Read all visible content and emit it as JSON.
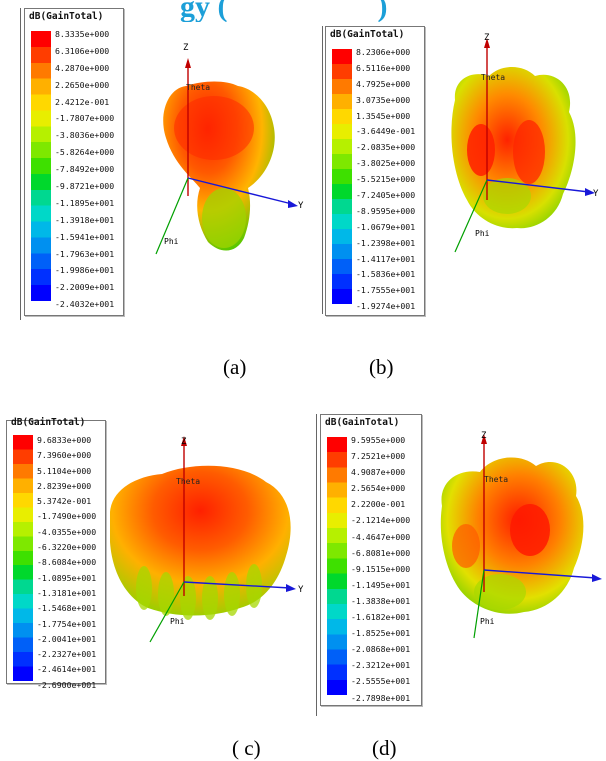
{
  "page": {
    "top_fragment": "gy (",
    "top_fragment_tail": ")"
  },
  "colors": {
    "scale": [
      "#ff0000",
      "#ff3d00",
      "#ff7a00",
      "#ffb000",
      "#ffd800",
      "#e8ee00",
      "#b6f000",
      "#7ee800",
      "#3ee000",
      "#00d82c",
      "#00d890",
      "#00d8c8",
      "#00b8e8",
      "#0090f0",
      "#0060f8",
      "#0030ff",
      "#0000ff"
    ],
    "pattern_hot": "#ff1e00",
    "pattern_mid": "#ffb400",
    "pattern_low": "#52c800",
    "axis_z": "#c00000",
    "axis_y": "#1818d8",
    "axis_phi": "#00a000"
  },
  "axes_labels": {
    "z": "Z",
    "y": "Y",
    "theta": "Theta",
    "phi": "Phi"
  },
  "panels": [
    {
      "caption": "(a)",
      "legend_title": "dB(GainTotal)",
      "values": [
        "8.3335e+000",
        "6.3106e+000",
        "4.2870e+000",
        "2.2650e+000",
        "2.4212e-001",
        "-1.7807e+000",
        "-3.8036e+000",
        "-5.8264e+000",
        "-7.8492e+000",
        "-9.8721e+000",
        "-1.1895e+001",
        "-1.3918e+001",
        "-1.5941e+001",
        "-1.7963e+001",
        "-1.9986e+001",
        "-2.2009e+001",
        "-2.4032e+001"
      ]
    },
    {
      "caption": "(b)",
      "legend_title": "dB(GainTotal)",
      "values": [
        "8.2306e+000",
        "6.5116e+000",
        "4.7925e+000",
        "3.0735e+000",
        "1.3545e+000",
        "-3.6449e-001",
        "-2.0835e+000",
        "-3.8025e+000",
        "-5.5215e+000",
        "-7.2405e+000",
        "-8.9595e+000",
        "-1.0679e+001",
        "-1.2398e+001",
        "-1.4117e+001",
        "-1.5836e+001",
        "-1.7555e+001",
        "-1.9274e+001"
      ]
    },
    {
      "caption": "( c)",
      "legend_title": "dB(GainTotal)",
      "values": [
        "9.6833e+000",
        "7.3960e+000",
        "5.1104e+000",
        "2.8239e+000",
        "5.3742e-001",
        "-1.7490e+000",
        "-4.0355e+000",
        "-6.3220e+000",
        "-8.6084e+000",
        "-1.0895e+001",
        "-1.3181e+001",
        "-1.5468e+001",
        "-1.7754e+001",
        "-2.0041e+001",
        "-2.2327e+001",
        "-2.4614e+001",
        "-2.6900e+001"
      ]
    },
    {
      "caption": "(d)",
      "legend_title": "dB(GainTotal)",
      "values": [
        "9.5955e+000",
        "7.2521e+000",
        "4.9087e+000",
        "2.5654e+000",
        "2.2200e-001",
        "-2.1214e+000",
        "-4.4647e+000",
        "-6.8081e+000",
        "-9.1515e+000",
        "-1.1495e+001",
        "-1.3838e+001",
        "-1.6182e+001",
        "-1.8525e+001",
        "-2.0868e+001",
        "-2.3212e+001",
        "-2.5555e+001",
        "-2.7898e+001"
      ]
    }
  ]
}
